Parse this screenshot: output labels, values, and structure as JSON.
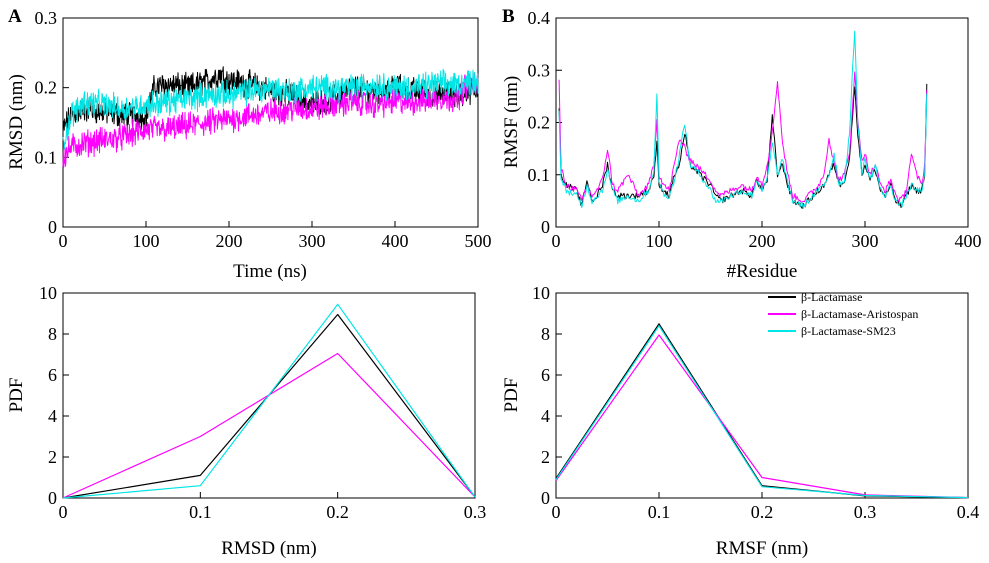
{
  "colors": {
    "lactamase": "#000000",
    "aristospan": "#ff00ff",
    "sm23": "#00e5e5"
  },
  "legend": {
    "entries": [
      "β-Lactamase",
      "β-Lactamase-Aristospan",
      "β-Lactamase-SM23"
    ]
  },
  "chart_data": [
    {
      "id": "A",
      "panel_label": "A",
      "type": "line",
      "xlabel": "Time (ns)",
      "ylabel": "RMSD (nm)",
      "xlim": [
        0,
        500
      ],
      "ylim": [
        0,
        0.3
      ],
      "xticks": [
        0,
        100,
        200,
        300,
        400,
        500
      ],
      "yticks": [
        0,
        0.1,
        0.2,
        0.3
      ],
      "xtick_labels": [
        "0",
        "100",
        "200",
        "300",
        "400",
        "500"
      ],
      "ytick_labels": [
        "0",
        "0.1",
        "0.2",
        "0.3"
      ],
      "series": [
        {
          "name": "β-Lactamase",
          "x": [
            0,
            10,
            25,
            50,
            75,
            100,
            110,
            125,
            150,
            175,
            190,
            200,
            225,
            250,
            275,
            300,
            325,
            350,
            375,
            400,
            425,
            450,
            475,
            500
          ],
          "values": [
            0.14,
            0.16,
            0.17,
            0.165,
            0.16,
            0.16,
            0.2,
            0.205,
            0.2,
            0.21,
            0.22,
            0.21,
            0.205,
            0.195,
            0.19,
            0.175,
            0.185,
            0.2,
            0.195,
            0.2,
            0.195,
            0.19,
            0.19,
            0.2
          ]
        },
        {
          "name": "β-Lactamase-Aristospan",
          "x": [
            0,
            10,
            25,
            50,
            75,
            100,
            125,
            150,
            175,
            200,
            225,
            250,
            275,
            300,
            325,
            350,
            375,
            400,
            425,
            450,
            475,
            490,
            500
          ],
          "values": [
            0.1,
            0.115,
            0.12,
            0.125,
            0.13,
            0.14,
            0.14,
            0.145,
            0.15,
            0.155,
            0.16,
            0.165,
            0.17,
            0.17,
            0.175,
            0.18,
            0.175,
            0.18,
            0.18,
            0.185,
            0.185,
            0.21,
            0.2
          ]
        },
        {
          "name": "β-Lactamase-SM23",
          "x": [
            0,
            10,
            25,
            50,
            75,
            100,
            125,
            150,
            175,
            200,
            225,
            250,
            275,
            300,
            325,
            350,
            375,
            400,
            425,
            450,
            475,
            500
          ],
          "values": [
            0.12,
            0.16,
            0.18,
            0.175,
            0.17,
            0.175,
            0.18,
            0.185,
            0.19,
            0.19,
            0.195,
            0.2,
            0.195,
            0.2,
            0.2,
            0.2,
            0.205,
            0.2,
            0.2,
            0.205,
            0.205,
            0.21
          ]
        }
      ]
    },
    {
      "id": "B",
      "panel_label": "B",
      "type": "line",
      "xlabel": "#Residue",
      "ylabel": "RMSF (nm)",
      "xlim": [
        0,
        400
      ],
      "ylim": [
        0,
        0.4
      ],
      "xticks": [
        0,
        100,
        200,
        300,
        400
      ],
      "yticks": [
        0,
        0.1,
        0.2,
        0.3,
        0.4
      ],
      "xtick_labels": [
        "0",
        "100",
        "200",
        "300",
        "400"
      ],
      "ytick_labels": [
        "0",
        "0.1",
        "0.2",
        "0.3",
        "0.4"
      ],
      "series": [
        {
          "name": "β-Lactamase",
          "x": [
            3,
            5,
            10,
            20,
            25,
            30,
            35,
            40,
            45,
            50,
            55,
            60,
            70,
            80,
            90,
            95,
            98,
            100,
            105,
            110,
            115,
            120,
            125,
            130,
            140,
            150,
            155,
            160,
            170,
            180,
            190,
            195,
            200,
            205,
            210,
            215,
            220,
            225,
            230,
            240,
            250,
            255,
            260,
            265,
            270,
            275,
            280,
            285,
            290,
            293,
            297,
            300,
            305,
            310,
            315,
            320,
            325,
            330,
            335,
            340,
            345,
            350,
            355,
            358,
            360
          ],
          "values": [
            0.23,
            0.1,
            0.08,
            0.07,
            0.04,
            0.09,
            0.05,
            0.06,
            0.08,
            0.12,
            0.07,
            0.06,
            0.06,
            0.06,
            0.07,
            0.1,
            0.16,
            0.08,
            0.07,
            0.06,
            0.1,
            0.12,
            0.18,
            0.12,
            0.1,
            0.08,
            0.06,
            0.05,
            0.06,
            0.07,
            0.06,
            0.09,
            0.07,
            0.09,
            0.21,
            0.1,
            0.12,
            0.08,
            0.05,
            0.04,
            0.06,
            0.07,
            0.08,
            0.1,
            0.12,
            0.08,
            0.09,
            0.13,
            0.27,
            0.18,
            0.1,
            0.12,
            0.09,
            0.11,
            0.07,
            0.06,
            0.08,
            0.05,
            0.04,
            0.06,
            0.08,
            0.07,
            0.07,
            0.1,
            0.27
          ]
        },
        {
          "name": "β-Lactamase-Aristospan",
          "x": [
            3,
            5,
            10,
            20,
            25,
            30,
            35,
            40,
            45,
            50,
            55,
            60,
            70,
            80,
            90,
            95,
            98,
            100,
            105,
            110,
            115,
            120,
            125,
            130,
            140,
            150,
            155,
            160,
            170,
            180,
            190,
            195,
            200,
            205,
            210,
            215,
            220,
            225,
            230,
            240,
            250,
            255,
            260,
            265,
            270,
            275,
            280,
            285,
            290,
            293,
            297,
            300,
            305,
            310,
            315,
            320,
            325,
            330,
            335,
            340,
            345,
            350,
            355,
            358,
            360
          ],
          "values": [
            0.28,
            0.11,
            0.08,
            0.07,
            0.05,
            0.08,
            0.06,
            0.07,
            0.09,
            0.15,
            0.08,
            0.07,
            0.1,
            0.06,
            0.08,
            0.12,
            0.21,
            0.1,
            0.08,
            0.07,
            0.12,
            0.17,
            0.15,
            0.13,
            0.11,
            0.09,
            0.07,
            0.06,
            0.07,
            0.08,
            0.07,
            0.1,
            0.08,
            0.12,
            0.18,
            0.28,
            0.16,
            0.1,
            0.06,
            0.05,
            0.07,
            0.08,
            0.1,
            0.17,
            0.12,
            0.09,
            0.1,
            0.14,
            0.3,
            0.2,
            0.13,
            0.14,
            0.1,
            0.12,
            0.08,
            0.07,
            0.09,
            0.06,
            0.05,
            0.07,
            0.14,
            0.1,
            0.08,
            0.12,
            0.26
          ]
        },
        {
          "name": "β-Lactamase-SM23",
          "x": [
            3,
            5,
            10,
            20,
            25,
            30,
            35,
            40,
            45,
            50,
            55,
            60,
            70,
            80,
            90,
            95,
            98,
            100,
            105,
            110,
            115,
            120,
            125,
            130,
            140,
            150,
            155,
            160,
            170,
            180,
            190,
            195,
            200,
            205,
            210,
            215,
            220,
            225,
            230,
            240,
            250,
            255,
            260,
            265,
            270,
            275,
            280,
            285,
            290,
            293,
            297,
            300,
            305,
            310,
            315,
            320,
            325,
            330,
            335,
            340,
            345,
            350,
            355,
            358,
            360
          ],
          "values": [
            0.22,
            0.09,
            0.07,
            0.06,
            0.04,
            0.08,
            0.05,
            0.06,
            0.07,
            0.11,
            0.07,
            0.05,
            0.06,
            0.05,
            0.07,
            0.11,
            0.25,
            0.09,
            0.06,
            0.06,
            0.09,
            0.14,
            0.2,
            0.12,
            0.1,
            0.07,
            0.05,
            0.05,
            0.06,
            0.07,
            0.06,
            0.09,
            0.07,
            0.09,
            0.16,
            0.1,
            0.13,
            0.08,
            0.05,
            0.04,
            0.06,
            0.07,
            0.08,
            0.1,
            0.14,
            0.08,
            0.09,
            0.18,
            0.38,
            0.2,
            0.1,
            0.13,
            0.09,
            0.12,
            0.07,
            0.06,
            0.08,
            0.05,
            0.04,
            0.06,
            0.08,
            0.07,
            0.07,
            0.1,
            0.25
          ]
        }
      ]
    },
    {
      "id": "C",
      "type": "line",
      "xlabel": "RMSD (nm)",
      "ylabel": "PDF",
      "xlim": [
        0,
        0.3
      ],
      "ylim": [
        0,
        10
      ],
      "xticks": [
        0,
        0.1,
        0.2,
        0.3
      ],
      "yticks": [
        0,
        2,
        4,
        6,
        8,
        10
      ],
      "xtick_labels": [
        "0",
        "0.1",
        "0.2",
        "0.3"
      ],
      "ytick_labels": [
        "0",
        "2",
        "4",
        "6",
        "8",
        "10"
      ],
      "series": [
        {
          "name": "β-Lactamase",
          "x": [
            0,
            0.1,
            0.2,
            0.3
          ],
          "values": [
            0,
            1.1,
            8.95,
            0.05
          ]
        },
        {
          "name": "β-Lactamase-Aristospan",
          "x": [
            0,
            0.1,
            0.2,
            0.3
          ],
          "values": [
            0,
            3.0,
            7.05,
            0.05
          ]
        },
        {
          "name": "β-Lactamase-SM23",
          "x": [
            0,
            0.1,
            0.2,
            0.3
          ],
          "values": [
            0,
            0.6,
            9.45,
            0.05
          ]
        }
      ]
    },
    {
      "id": "D",
      "type": "line",
      "xlabel": "RMSF (nm)",
      "ylabel": "PDF",
      "xlim": [
        0,
        0.4
      ],
      "ylim": [
        0,
        10
      ],
      "xticks": [
        0,
        0.1,
        0.2,
        0.3,
        0.4
      ],
      "yticks": [
        0,
        2,
        4,
        6,
        8,
        10
      ],
      "xtick_labels": [
        "0",
        "0.1",
        "0.2",
        "0.3",
        "0.4"
      ],
      "ytick_labels": [
        "0",
        "2",
        "4",
        "6",
        "8",
        "10"
      ],
      "series": [
        {
          "name": "β-Lactamase",
          "x": [
            0,
            0.1,
            0.2,
            0.3,
            0.4
          ],
          "values": [
            0.95,
            8.5,
            0.6,
            0.1,
            0.02
          ]
        },
        {
          "name": "β-Lactamase-Aristospan",
          "x": [
            0,
            0.1,
            0.2,
            0.3,
            0.4
          ],
          "values": [
            0.85,
            7.95,
            1.0,
            0.15,
            0.02
          ]
        },
        {
          "name": "β-Lactamase-SM23",
          "x": [
            0,
            0.1,
            0.2,
            0.3,
            0.4
          ],
          "values": [
            0.9,
            8.4,
            0.55,
            0.12,
            0.02
          ]
        }
      ]
    }
  ]
}
